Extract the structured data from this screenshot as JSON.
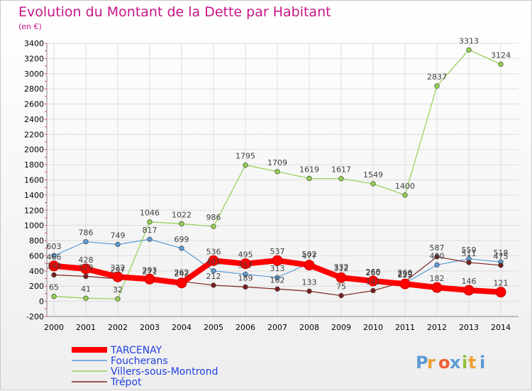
{
  "chart_data": {
    "type": "line",
    "title": "Evolution du Montant de la Dette par Habitant",
    "subtitle": "(en €)",
    "x": [
      "2000",
      "2001",
      "2002",
      "2003",
      "2004",
      "2005",
      "2006",
      "2007",
      "2008",
      "2009",
      "2010",
      "2011",
      "2012",
      "2013",
      "2014"
    ],
    "ylim": [
      -200,
      3400
    ],
    "yticks": [
      -200,
      0,
      200,
      400,
      600,
      800,
      1000,
      1200,
      1400,
      1600,
      1800,
      2000,
      2200,
      2400,
      2600,
      2800,
      3000,
      3200,
      3400
    ],
    "grid": true,
    "legend_position": "bottom-left",
    "series": [
      {
        "name": "TARCENAY",
        "color": "#ff0000",
        "width": 8,
        "values": [
          466,
          428,
          322,
          293,
          242,
          536,
          495,
          537,
          477,
          312,
          268,
          229,
          182,
          146,
          121
        ]
      },
      {
        "name": "Foucherans",
        "color": "#5b9bd5",
        "width": 1.2,
        "values": [
          603,
          786,
          749,
          817,
          699,
          401,
          357,
          313,
          502,
          332,
          260,
          239,
          480,
          559,
          518
        ]
      },
      {
        "name": "Villers-sous-Montrond",
        "color": "#92d050",
        "width": 1.2,
        "values": [
          65,
          41,
          32,
          1046,
          1022,
          986,
          1795,
          1709,
          1619,
          1617,
          1549,
          1400,
          2837,
          3313,
          3124
        ]
      },
      {
        "name": "Trépot",
        "color": "#7b1f1f",
        "width": 1.2,
        "values": [
          348,
          329,
          297,
          271,
          262,
          212,
          189,
          162,
          133,
          75,
          141,
          260,
          587,
          511,
          475
        ]
      }
    ]
  },
  "branding": {
    "logo_text": "Proxiti",
    "logo_colors": [
      "#5b9bd5",
      "#f0a030",
      "#f06030",
      "#5b9bd5",
      "#92c03a",
      "#f0a030",
      "#5b9bd5"
    ]
  },
  "colors": {
    "title": "#c71585",
    "legend_text": "#2040e0",
    "axis_text": "#000000",
    "grid": "#dddddd"
  }
}
